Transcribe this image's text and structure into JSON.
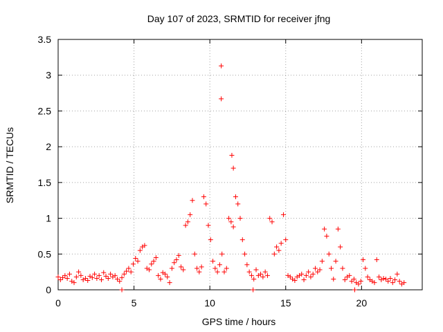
{
  "chart_data": {
    "type": "scatter",
    "title": "Day 107 of 2023, SRMTID for receiver jfng",
    "xlabel": "GPS time / hours",
    "ylabel": "SRMTID / TECUs",
    "xlim": [
      0,
      24
    ],
    "ylim": [
      0,
      3.5
    ],
    "x_ticks": [
      0,
      5,
      10,
      15,
      20
    ],
    "x_tick_labels": [
      "0",
      "5",
      "10",
      "15",
      "20"
    ],
    "y_ticks": [
      0,
      0.5,
      1,
      1.5,
      2,
      2.5,
      3,
      3.5
    ],
    "y_tick_labels": [
      "0",
      "0.5",
      "1",
      "1.5",
      "2",
      "2.5",
      "3",
      "3.5"
    ],
    "grid": true,
    "marker": "+",
    "series": [
      {
        "name": "SRMTID",
        "color": "#ff0000",
        "x": [
          0.0,
          0.15,
          0.3,
          0.45,
          0.6,
          0.75,
          0.9,
          1.05,
          1.2,
          1.35,
          1.5,
          1.65,
          1.8,
          1.95,
          2.1,
          2.25,
          2.4,
          2.55,
          2.7,
          2.85,
          3.0,
          3.15,
          3.3,
          3.45,
          3.6,
          3.75,
          3.9,
          4.05,
          4.2,
          4.35,
          4.5,
          4.65,
          4.8,
          4.95,
          5.1,
          5.25,
          5.4,
          5.55,
          5.7,
          5.85,
          6.0,
          6.15,
          6.3,
          6.45,
          6.6,
          6.75,
          6.9,
          7.05,
          7.2,
          7.35,
          7.5,
          7.65,
          7.8,
          7.95,
          8.1,
          8.25,
          8.4,
          8.55,
          8.7,
          8.85,
          9.0,
          9.15,
          9.3,
          9.45,
          9.6,
          9.75,
          9.9,
          10.05,
          10.2,
          10.35,
          10.5,
          10.65,
          10.8,
          10.95,
          11.1,
          11.25,
          11.4,
          11.55,
          11.7,
          11.85,
          12.0,
          12.15,
          12.3,
          12.45,
          12.6,
          12.75,
          12.9,
          13.05,
          13.2,
          13.35,
          13.5,
          13.65,
          13.8,
          13.95,
          14.1,
          14.25,
          14.4,
          14.55,
          14.7,
          14.85,
          15.0,
          15.15,
          15.3,
          15.45,
          15.6,
          15.75,
          15.9,
          16.05,
          16.2,
          16.35,
          16.5,
          16.65,
          16.8,
          16.95,
          17.1,
          17.25,
          17.4,
          17.55,
          17.7,
          17.85,
          18.0,
          18.15,
          18.3,
          18.45,
          18.6,
          18.75,
          18.9,
          19.05,
          19.2,
          19.35,
          19.5,
          19.65,
          19.8,
          19.95,
          20.1,
          20.25,
          20.4,
          20.55,
          20.7,
          20.85,
          21.0,
          21.15,
          21.3,
          21.45,
          21.6,
          21.75,
          21.9,
          22.05,
          22.2,
          22.35,
          22.5,
          22.65,
          22.8,
          4.2,
          10.75,
          10.75,
          11.45,
          11.55,
          12.85,
          19.55
        ],
        "y": [
          0.18,
          0.14,
          0.17,
          0.2,
          0.16,
          0.22,
          0.12,
          0.1,
          0.18,
          0.25,
          0.2,
          0.14,
          0.16,
          0.13,
          0.19,
          0.17,
          0.22,
          0.16,
          0.2,
          0.14,
          0.24,
          0.19,
          0.16,
          0.22,
          0.18,
          0.2,
          0.15,
          0.12,
          0.17,
          0.22,
          0.26,
          0.3,
          0.25,
          0.36,
          0.44,
          0.4,
          0.55,
          0.6,
          0.62,
          0.3,
          0.28,
          0.36,
          0.4,
          0.45,
          0.2,
          0.15,
          0.24,
          0.22,
          0.18,
          0.1,
          0.3,
          0.38,
          0.42,
          0.48,
          0.32,
          0.28,
          0.9,
          0.95,
          1.05,
          1.25,
          0.5,
          0.3,
          0.25,
          0.32,
          1.3,
          1.2,
          0.9,
          0.7,
          0.4,
          0.3,
          0.25,
          0.35,
          0.5,
          0.25,
          0.3,
          1.0,
          0.95,
          0.88,
          1.3,
          1.2,
          1.0,
          0.7,
          0.5,
          0.35,
          0.25,
          0.2,
          0.15,
          0.28,
          0.2,
          0.22,
          0.18,
          0.25,
          0.2,
          1.0,
          0.95,
          0.5,
          0.6,
          0.55,
          0.65,
          1.05,
          0.7,
          0.2,
          0.18,
          0.15,
          0.13,
          0.18,
          0.2,
          0.22,
          0.14,
          0.2,
          0.25,
          0.18,
          0.22,
          0.3,
          0.25,
          0.28,
          0.4,
          0.85,
          0.75,
          0.5,
          0.3,
          0.15,
          0.4,
          0.85,
          0.6,
          0.3,
          0.14,
          0.18,
          0.2,
          0.12,
          0.15,
          0.1,
          0.08,
          0.12,
          0.42,
          0.3,
          0.18,
          0.14,
          0.12,
          0.1,
          0.42,
          0.18,
          0.14,
          0.16,
          0.15,
          0.12,
          0.16,
          0.1,
          0.14,
          0.22,
          0.12,
          0.08,
          0.1,
          0.0,
          3.13,
          2.67,
          1.88,
          1.7,
          0.0,
          0.0
        ]
      }
    ]
  }
}
